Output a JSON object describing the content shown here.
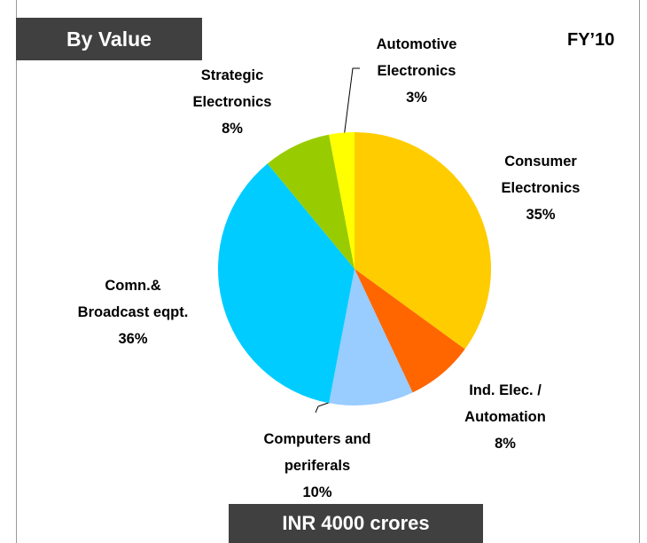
{
  "chart_data": {
    "type": "pie",
    "title": "By Value",
    "period": "FY’10",
    "footer": "INR 4000 crores",
    "categories": [
      "Consumer\nElectronics",
      "Ind. Elec. /\nAutomation",
      "Computers and\nperiferals",
      "Comn.&\nBroadcast eqpt.",
      "Strategic\nElectronics",
      "Automotive\nElectronics"
    ],
    "values": [
      35,
      8,
      10,
      36,
      8,
      3
    ],
    "value_labels": [
      "35%",
      "8%",
      "10%",
      "36%",
      "8%",
      "3%"
    ],
    "colors": [
      "#ffcc00",
      "#ff6600",
      "#99ccff",
      "#00ccff",
      "#99cc00",
      "#ffff00"
    ]
  }
}
